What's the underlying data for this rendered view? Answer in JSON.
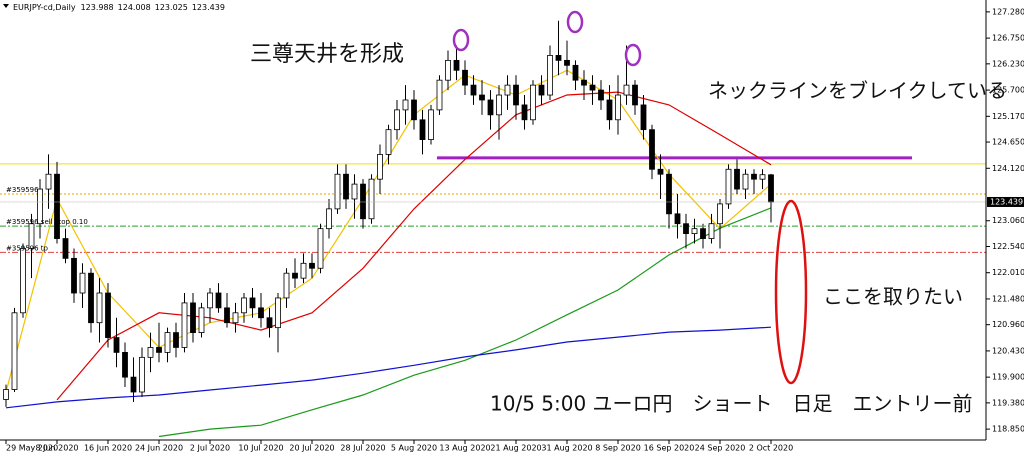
{
  "chart_data": {
    "type": "candlestick",
    "title": "EURJPY-cd,Daily",
    "categories": [
      "29 May 2020",
      null,
      null,
      null,
      null,
      null,
      "8 Jun 2020",
      null,
      null,
      null,
      null,
      null,
      "16 Jun 2020",
      null,
      null,
      null,
      null,
      null,
      "24 Jun 2020",
      null,
      null,
      null,
      null,
      null,
      "2 Jul 2020",
      null,
      null,
      null,
      null,
      null,
      "10 Jul 2020",
      null,
      null,
      null,
      null,
      null,
      "20 Jul 2020",
      null,
      null,
      null,
      null,
      null,
      "28 Jul 2020",
      null,
      null,
      null,
      null,
      null,
      "5 Aug 2020",
      null,
      null,
      null,
      null,
      null,
      "13 Aug 2020",
      null,
      null,
      null,
      null,
      null,
      "21 Aug 2020",
      null,
      null,
      null,
      null,
      null,
      "31 Aug 2020",
      null,
      null,
      null,
      null,
      null,
      "8 Sep 2020",
      null,
      null,
      null,
      null,
      null,
      "16 Sep 2020",
      null,
      null,
      null,
      null,
      null,
      "24 Sep 2020",
      null,
      null,
      null,
      null,
      null,
      "2 Oct 2020"
    ],
    "ohlc": [
      [
        119.45,
        119.75,
        119.3,
        119.65
      ],
      [
        119.65,
        121.3,
        119.6,
        121.2
      ],
      [
        121.2,
        122.6,
        121.1,
        122.5
      ],
      [
        122.5,
        123.2,
        121.9,
        123.0
      ],
      [
        123.0,
        123.9,
        122.7,
        123.7
      ],
      [
        123.7,
        124.4,
        123.3,
        124.0
      ],
      [
        124.0,
        124.25,
        122.6,
        122.7
      ],
      [
        122.7,
        122.9,
        122.2,
        122.3
      ],
      [
        122.3,
        122.5,
        121.4,
        121.6
      ],
      [
        121.6,
        122.2,
        121.3,
        122.0
      ],
      [
        122.0,
        122.1,
        120.8,
        121.0
      ],
      [
        121.0,
        121.9,
        120.6,
        121.6
      ],
      [
        121.6,
        121.8,
        120.5,
        120.7
      ],
      [
        120.7,
        121.1,
        120.1,
        120.4
      ],
      [
        120.4,
        120.6,
        119.7,
        119.9
      ],
      [
        119.9,
        120.3,
        119.4,
        119.6
      ],
      [
        119.6,
        120.5,
        119.5,
        120.3
      ],
      [
        120.3,
        120.8,
        120.0,
        120.5
      ],
      [
        120.5,
        121.0,
        120.2,
        120.4
      ],
      [
        120.4,
        120.9,
        120.2,
        120.8
      ],
      [
        120.8,
        121.0,
        120.3,
        120.5
      ],
      [
        120.5,
        121.6,
        120.4,
        121.4
      ],
      [
        121.4,
        121.6,
        120.6,
        120.8
      ],
      [
        120.8,
        121.4,
        120.7,
        121.3
      ],
      [
        121.3,
        121.7,
        121.0,
        121.6
      ],
      [
        121.6,
        121.8,
        121.2,
        121.3
      ],
      [
        121.3,
        121.6,
        120.9,
        121.0
      ],
      [
        121.0,
        121.4,
        120.8,
        121.2
      ],
      [
        121.2,
        121.6,
        121.0,
        121.5
      ],
      [
        121.5,
        121.7,
        121.1,
        121.3
      ],
      [
        121.3,
        121.6,
        120.9,
        121.1
      ],
      [
        121.1,
        121.3,
        120.7,
        120.9
      ],
      [
        120.9,
        121.6,
        120.4,
        121.5
      ],
      [
        121.5,
        122.1,
        121.3,
        122.0
      ],
      [
        122.0,
        122.3,
        121.7,
        121.9
      ],
      [
        121.9,
        122.4,
        121.8,
        122.2
      ],
      [
        122.2,
        122.4,
        121.9,
        122.1
      ],
      [
        122.1,
        123.0,
        122.0,
        122.9
      ],
      [
        122.9,
        123.5,
        122.7,
        123.3
      ],
      [
        123.3,
        124.2,
        123.2,
        124.0
      ],
      [
        124.0,
        124.2,
        123.3,
        123.5
      ],
      [
        123.5,
        124.0,
        123.1,
        123.8
      ],
      [
        123.8,
        123.9,
        122.9,
        123.1
      ],
      [
        123.1,
        124.0,
        123.0,
        123.9
      ],
      [
        123.9,
        124.6,
        123.6,
        124.4
      ],
      [
        124.4,
        125.0,
        124.2,
        124.9
      ],
      [
        124.9,
        125.5,
        124.7,
        125.3
      ],
      [
        125.3,
        125.8,
        125.0,
        125.5
      ],
      [
        125.5,
        125.7,
        124.9,
        125.1
      ],
      [
        125.1,
        125.3,
        124.4,
        124.7
      ],
      [
        124.7,
        125.4,
        124.6,
        125.3
      ],
      [
        125.3,
        126.0,
        125.2,
        125.9
      ],
      [
        125.9,
        126.5,
        125.7,
        126.3
      ],
      [
        126.3,
        126.6,
        125.9,
        126.1
      ],
      [
        126.1,
        126.3,
        125.6,
        125.8
      ],
      [
        125.8,
        126.0,
        125.4,
        125.6
      ],
      [
        125.6,
        125.9,
        125.2,
        125.5
      ],
      [
        125.5,
        125.7,
        124.9,
        125.2
      ],
      [
        125.2,
        125.8,
        124.7,
        125.6
      ],
      [
        125.6,
        126.0,
        125.3,
        125.8
      ],
      [
        125.8,
        126.0,
        125.1,
        125.4
      ],
      [
        125.4,
        125.6,
        124.9,
        125.1
      ],
      [
        125.1,
        125.9,
        125.0,
        125.8
      ],
      [
        125.8,
        126.0,
        125.4,
        125.6
      ],
      [
        125.6,
        126.6,
        125.5,
        126.4
      ],
      [
        126.4,
        127.1,
        126.0,
        126.3
      ],
      [
        126.3,
        126.7,
        126.0,
        126.2
      ],
      [
        126.2,
        126.3,
        125.7,
        125.9
      ],
      [
        125.9,
        126.1,
        125.5,
        125.8
      ],
      [
        125.8,
        126.0,
        125.4,
        125.7
      ],
      [
        125.7,
        125.9,
        125.3,
        125.5
      ],
      [
        125.5,
        125.8,
        124.9,
        125.1
      ],
      [
        125.1,
        126.0,
        124.8,
        125.6
      ],
      [
        125.6,
        126.6,
        125.4,
        125.8
      ],
      [
        125.8,
        125.9,
        125.2,
        125.4
      ],
      [
        125.4,
        125.6,
        124.7,
        124.9
      ],
      [
        124.9,
        125.0,
        123.9,
        124.1
      ],
      [
        124.1,
        124.4,
        123.5,
        124.0
      ],
      [
        124.0,
        124.1,
        122.9,
        123.2
      ],
      [
        123.2,
        123.6,
        122.7,
        123.0
      ],
      [
        123.0,
        123.2,
        122.5,
        122.8
      ],
      [
        122.8,
        123.1,
        122.6,
        122.9
      ],
      [
        122.9,
        123.0,
        122.5,
        122.7
      ],
      [
        122.7,
        123.2,
        122.6,
        123.0
      ],
      [
        123.0,
        123.5,
        122.5,
        123.4
      ],
      [
        123.4,
        124.2,
        123.3,
        124.1
      ],
      [
        124.1,
        124.3,
        123.6,
        123.7
      ],
      [
        123.7,
        124.1,
        123.5,
        124.0
      ],
      [
        124.0,
        124.1,
        123.6,
        123.9
      ],
      [
        123.9,
        124.1,
        123.7,
        123.99
      ],
      [
        123.988,
        124.008,
        123.025,
        123.439
      ]
    ],
    "bull_color": "#ffffff",
    "bear_color": "#000000",
    "moving_averages": [
      {
        "color": "#f2c200",
        "x": [
          0,
          6,
          12,
          18,
          24,
          30,
          36,
          42,
          48,
          54,
          60,
          66,
          72,
          78,
          84,
          90
        ],
        "values": [
          119.6,
          123.5,
          121.6,
          120.5,
          121.0,
          121.2,
          121.9,
          123.5,
          125.2,
          126.0,
          125.6,
          126.1,
          125.5,
          124.0,
          122.9,
          123.8
        ]
      },
      {
        "color": "#e00000",
        "x": [
          6,
          12,
          18,
          24,
          30,
          36,
          42,
          48,
          54,
          60,
          66,
          72,
          78,
          84,
          90
        ],
        "values": [
          119.44,
          120.65,
          121.2,
          121.1,
          120.85,
          121.2,
          122.1,
          123.3,
          124.3,
          125.2,
          125.6,
          125.66,
          125.4,
          124.8,
          124.19
        ]
      },
      {
        "color": "#1a9a1a",
        "x": [
          18,
          24,
          30,
          36,
          42,
          48,
          54,
          60,
          66,
          72,
          78,
          84,
          90
        ],
        "values": [
          118.7,
          118.85,
          118.93,
          119.24,
          119.54,
          119.94,
          120.24,
          120.65,
          121.16,
          121.66,
          122.37,
          122.91,
          123.32
        ]
      },
      {
        "color": "#1010d0",
        "x": [
          0,
          6,
          12,
          18,
          24,
          30,
          36,
          42,
          48,
          54,
          60,
          66,
          72,
          78,
          84,
          90
        ],
        "values": [
          119.28,
          119.4,
          119.48,
          119.54,
          119.64,
          119.74,
          119.84,
          119.98,
          120.14,
          120.31,
          120.45,
          120.61,
          120.71,
          120.81,
          120.85,
          120.91
        ]
      }
    ],
    "levels": [
      {
        "value": 124.21,
        "color": "#f2e200",
        "style": "solid"
      },
      {
        "value": 123.6,
        "color": "#f0a000",
        "style": "dot",
        "label": "#359596"
      },
      {
        "value": 122.95,
        "color": "#2aa02a",
        "style": "dashdot",
        "label": "#359596 sell stop 0.10"
      },
      {
        "value": 122.42,
        "color": "#e04040",
        "style": "dashdot",
        "label": "#359596 tp"
      }
    ],
    "neckline": {
      "value": 124.33,
      "color": "#a020c0"
    },
    "ylim": [
      118.63,
      127.52
    ],
    "yticks": [
      {
        "value": 127.28,
        "label": "127.280"
      },
      {
        "value": 126.75,
        "label": "126.750"
      },
      {
        "value": 126.23,
        "label": "126.230"
      },
      {
        "value": 125.7,
        "label": "125.700"
      },
      {
        "value": 125.17,
        "label": "125.170"
      },
      {
        "value": 124.65,
        "label": "124.650"
      },
      {
        "value": 124.12,
        "label": "124.120"
      },
      {
        "value": 123.06,
        "label": "123.060"
      },
      {
        "value": 122.54,
        "label": "122.540"
      },
      {
        "value": 122.01,
        "label": "122.010"
      },
      {
        "value": 121.48,
        "label": "121.480"
      },
      {
        "value": 120.96,
        "label": "120.960"
      },
      {
        "value": 120.43,
        "label": "120.430"
      },
      {
        "value": 119.9,
        "label": "119.900"
      },
      {
        "value": 119.38,
        "label": "119.380"
      },
      {
        "value": 118.85,
        "label": "118.850"
      }
    ],
    "annotations": [
      "三尊天井を形成",
      "ネックラインをブレイクしている",
      "ここを取りたい",
      "10/5 5:00 ユーロ円　ショート　日足　エントリー前"
    ]
  }
}
